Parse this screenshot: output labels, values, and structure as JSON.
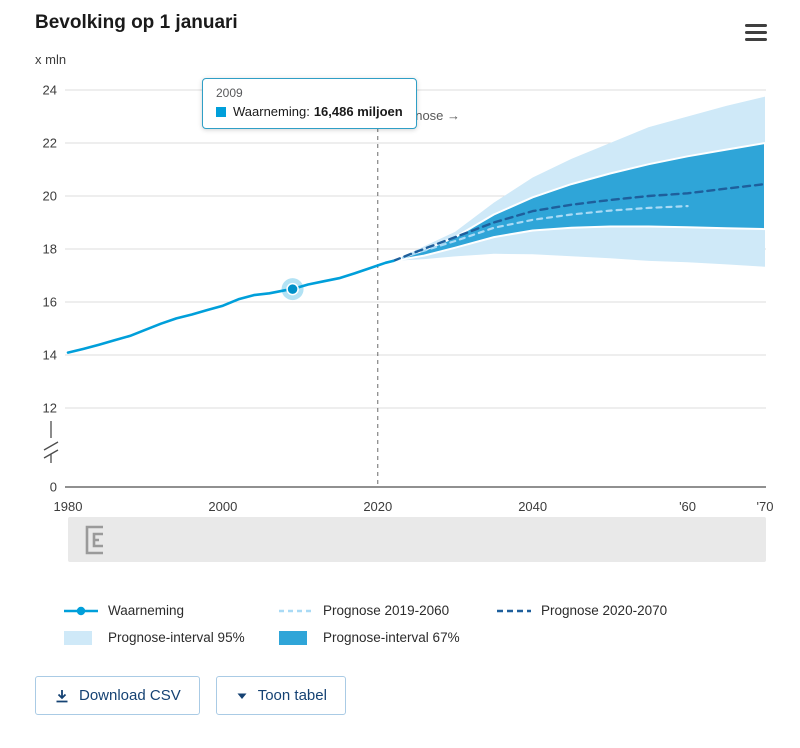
{
  "header": {
    "title": "Bevolking op 1 januari"
  },
  "chart": {
    "unit_label": "x mln",
    "prognose_label": "Prognose →",
    "tooltip": {
      "year": "2009",
      "series_label": "Waarneming:",
      "value": "16,486 miljoen"
    }
  },
  "chart_data": {
    "type": "line",
    "title": "Bevolking op 1 januari",
    "ylabel": "x mln",
    "y_ticks": [
      24,
      22,
      20,
      18,
      16,
      14,
      12,
      0
    ],
    "y_axis_break": true,
    "x_ticks": [
      "1980",
      "2000",
      "2020",
      "2040",
      "'60",
      "'70"
    ],
    "x_tick_years": [
      1980,
      2000,
      2020,
      2040,
      2060,
      2070
    ],
    "xlim": [
      1980,
      2070
    ],
    "ylim_upper_segment": [
      12,
      24
    ],
    "grid_on": true,
    "grid_color": "#dcdcdc",
    "axis_color": "#4d4d4d",
    "forecast_divider_year": 2020,
    "marker": {
      "year": 2009,
      "value": 16.486,
      "label": "16,486 miljoen",
      "color": "#0090c8",
      "halo": "rgba(0,159,218,0.3)"
    },
    "bands": [
      {
        "name": "Prognose-interval 95%",
        "color": "#cfe9f8",
        "upper": [
          [
            2022,
            17.55
          ],
          [
            2026,
            18.1
          ],
          [
            2030,
            18.65
          ],
          [
            2035,
            19.75
          ],
          [
            2040,
            20.7
          ],
          [
            2045,
            21.4
          ],
          [
            2050,
            22.0
          ],
          [
            2055,
            22.6
          ],
          [
            2060,
            23.0
          ],
          [
            2065,
            23.4
          ],
          [
            2070,
            23.75
          ]
        ],
        "lower": [
          [
            2022,
            17.55
          ],
          [
            2026,
            17.62
          ],
          [
            2030,
            17.72
          ],
          [
            2035,
            17.82
          ],
          [
            2040,
            17.8
          ],
          [
            2045,
            17.73
          ],
          [
            2050,
            17.65
          ],
          [
            2055,
            17.55
          ],
          [
            2060,
            17.5
          ],
          [
            2065,
            17.42
          ],
          [
            2070,
            17.33
          ]
        ]
      },
      {
        "name": "Prognose-interval 67%",
        "color": "#2fa5d8",
        "stroke": "#ffffff",
        "upper": [
          [
            2022,
            17.55
          ],
          [
            2026,
            17.95
          ],
          [
            2030,
            18.45
          ],
          [
            2035,
            19.3
          ],
          [
            2040,
            19.95
          ],
          [
            2045,
            20.45
          ],
          [
            2050,
            20.85
          ],
          [
            2055,
            21.2
          ],
          [
            2060,
            21.5
          ],
          [
            2065,
            21.75
          ],
          [
            2070,
            22.0
          ]
        ],
        "lower": [
          [
            2022,
            17.55
          ],
          [
            2026,
            17.75
          ],
          [
            2030,
            18.05
          ],
          [
            2035,
            18.45
          ],
          [
            2040,
            18.7
          ],
          [
            2045,
            18.8
          ],
          [
            2050,
            18.85
          ],
          [
            2055,
            18.85
          ],
          [
            2060,
            18.82
          ],
          [
            2065,
            18.78
          ],
          [
            2070,
            18.75
          ]
        ]
      }
    ],
    "series": [
      {
        "name": "Waarneming",
        "style": "solid",
        "color": "#009fda",
        "width": 2.6,
        "dash": "none",
        "points": [
          [
            1980,
            14.09
          ],
          [
            1982,
            14.23
          ],
          [
            1984,
            14.39
          ],
          [
            1986,
            14.56
          ],
          [
            1988,
            14.72
          ],
          [
            1990,
            14.95
          ],
          [
            1992,
            15.18
          ],
          [
            1994,
            15.38
          ],
          [
            1996,
            15.53
          ],
          [
            1998,
            15.7
          ],
          [
            2000,
            15.86
          ],
          [
            2002,
            16.1
          ],
          [
            2004,
            16.26
          ],
          [
            2006,
            16.33
          ],
          [
            2008,
            16.44
          ],
          [
            2009,
            16.49
          ],
          [
            2011,
            16.66
          ],
          [
            2013,
            16.78
          ],
          [
            2015,
            16.9
          ],
          [
            2017,
            17.08
          ],
          [
            2019,
            17.28
          ],
          [
            2021,
            17.48
          ],
          [
            2022,
            17.55
          ]
        ]
      },
      {
        "name": "Prognose 2019-2060",
        "style": "dashed",
        "color": "#a9daf5",
        "width": 2.2,
        "dash": "5 5",
        "points": [
          [
            2022,
            17.55
          ],
          [
            2025,
            17.85
          ],
          [
            2030,
            18.3
          ],
          [
            2035,
            18.8
          ],
          [
            2040,
            19.1
          ],
          [
            2045,
            19.3
          ],
          [
            2050,
            19.45
          ],
          [
            2055,
            19.55
          ],
          [
            2060,
            19.62
          ]
        ]
      },
      {
        "name": "Prognose 2020-2070",
        "style": "dashed",
        "color": "#1e5f9c",
        "width": 2.4,
        "dash": "7 5",
        "points": [
          [
            2022,
            17.55
          ],
          [
            2025,
            17.9
          ],
          [
            2030,
            18.45
          ],
          [
            2035,
            19.0
          ],
          [
            2040,
            19.43
          ],
          [
            2045,
            19.67
          ],
          [
            2050,
            19.85
          ],
          [
            2055,
            20.0
          ],
          [
            2060,
            20.1
          ],
          [
            2065,
            20.28
          ],
          [
            2070,
            20.45
          ]
        ]
      }
    ]
  },
  "legend": {
    "items": [
      {
        "label": "Waarneming",
        "swatch": "line-dot"
      },
      {
        "label": "Prognose 2019-2060",
        "swatch": "dashed-light"
      },
      {
        "label": "Prognose 2020-2070",
        "swatch": "dashed-dark"
      },
      {
        "label": "Prognose-interval 95%",
        "swatch": "fill-light"
      },
      {
        "label": "Prognose-interval 67%",
        "swatch": "fill-medium"
      }
    ]
  },
  "actions": {
    "download_csv_label": "Download CSV",
    "toon_tabel_label": "Toon tabel"
  },
  "colors": {
    "waarneming": "#009fda",
    "prognose_2019_2060": "#a9daf5",
    "prognose_2020_2070": "#1e5f9c",
    "interval_95": "#cfe9f8",
    "interval_67": "#2fa5d8",
    "button_text": "#154273",
    "tooltip_border": "#2f9fc6"
  }
}
